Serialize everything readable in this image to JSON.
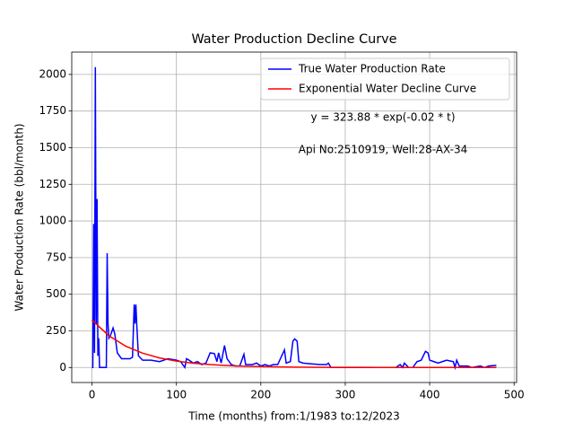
{
  "chart_data": {
    "type": "line",
    "title": "Water Production Decline Curve",
    "xlabel": "Time (months) from:1/1983 to:12/2023",
    "ylabel": "Water Production Rate (bbl/month)",
    "annotations": [
      "y = 323.88 * exp(-0.02 * t)",
      "Api No:2510919, Well:28-AX-34"
    ],
    "xlim": [
      -23.95,
      502.95
    ],
    "ylim": [
      -102.5,
      2152.5
    ],
    "xticks": [
      0,
      100,
      200,
      300,
      400,
      500
    ],
    "yticks": [
      0,
      250,
      500,
      750,
      1000,
      1250,
      1500,
      1750,
      2000
    ],
    "grid": true,
    "legend": "upper right",
    "series": [
      {
        "name": "True Water Production Rate",
        "color": "#0000ff",
        "x": [
          0,
          1,
          2,
          3,
          4,
          5,
          6,
          7,
          8,
          9,
          10,
          15,
          17,
          18,
          19,
          20,
          22,
          25,
          27,
          30,
          35,
          40,
          45,
          48,
          50,
          51,
          52,
          53,
          55,
          60,
          70,
          80,
          90,
          100,
          105,
          110,
          112,
          115,
          120,
          125,
          130,
          135,
          140,
          145,
          148,
          150,
          153,
          157,
          160,
          165,
          170,
          175,
          180,
          182,
          190,
          195,
          200,
          205,
          210,
          215,
          220,
          228,
          230,
          235,
          238,
          240,
          243,
          245,
          250,
          260,
          270,
          278,
          280,
          283,
          290,
          300,
          320,
          340,
          360,
          365,
          368,
          370,
          375,
          380,
          385,
          390,
          395,
          398,
          400,
          405,
          410,
          415,
          420,
          428,
          430,
          432,
          435,
          440,
          445,
          450,
          460,
          465,
          470,
          479
        ],
        "values": [
          0,
          0,
          980,
          100,
          2050,
          300,
          1150,
          80,
          200,
          0,
          0,
          0,
          0,
          780,
          300,
          200,
          220,
          270,
          230,
          100,
          60,
          60,
          60,
          70,
          430,
          300,
          430,
          300,
          80,
          50,
          50,
          40,
          60,
          50,
          40,
          0,
          60,
          50,
          30,
          40,
          20,
          30,
          100,
          95,
          40,
          100,
          30,
          150,
          60,
          20,
          10,
          10,
          90,
          20,
          20,
          30,
          10,
          20,
          10,
          20,
          20,
          120,
          30,
          40,
          180,
          195,
          180,
          40,
          30,
          25,
          20,
          20,
          30,
          0,
          0,
          0,
          0,
          0,
          0,
          20,
          0,
          30,
          0,
          0,
          40,
          50,
          110,
          100,
          50,
          40,
          30,
          40,
          50,
          40,
          0,
          50,
          10,
          10,
          10,
          0,
          10,
          0,
          10,
          15
        ]
      },
      {
        "name": "Exponential Water Decline Curve",
        "color": "#ff0000",
        "x": [
          0,
          20,
          40,
          60,
          80,
          100,
          120,
          140,
          160,
          180,
          200,
          220,
          240,
          260,
          280,
          300,
          320,
          340,
          360,
          380,
          400,
          420,
          440,
          460,
          479
        ],
        "values": [
          323.88,
          217.1,
          145.5,
          97.6,
          65.4,
          43.8,
          29.4,
          19.7,
          13.2,
          8.9,
          5.9,
          4.0,
          2.7,
          1.8,
          1.2,
          0.8,
          0.54,
          0.36,
          0.24,
          0.16,
          0.11,
          0.07,
          0.05,
          0.03,
          0.02
        ]
      }
    ]
  }
}
